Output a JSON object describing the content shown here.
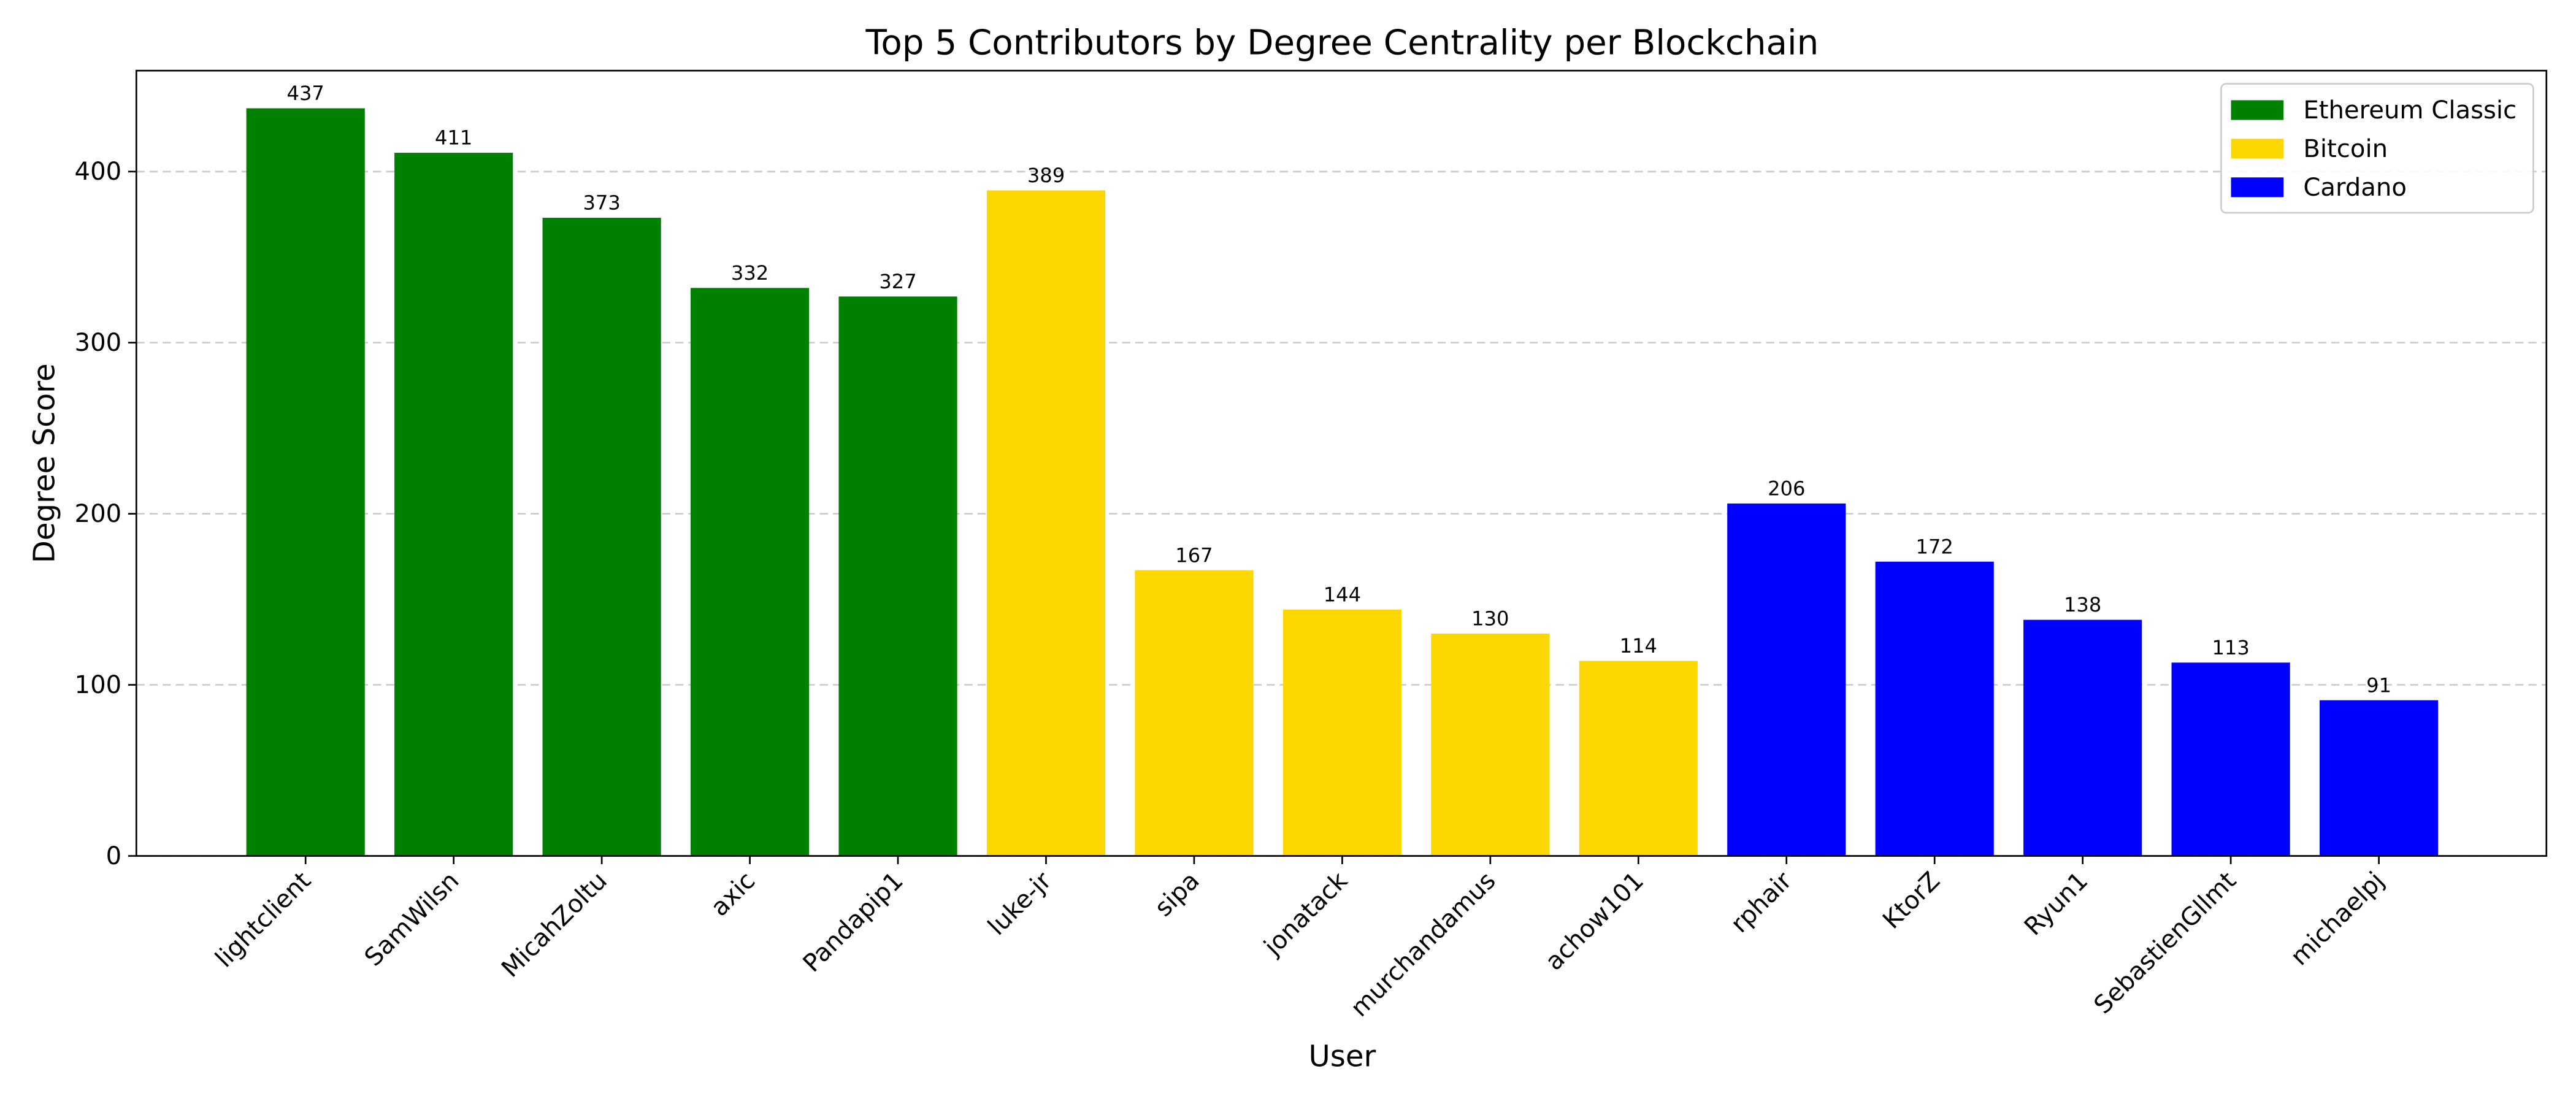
{
  "chart_data": {
    "type": "bar",
    "title": "Top 5 Contributors by Degree Centrality per Blockchain",
    "xlabel": "User",
    "ylabel": "Degree Score",
    "categories": [
      "lightclient",
      "SamWilsn",
      "MicahZoltu",
      "axic",
      "Pandapip1",
      "luke-jr",
      "sipa",
      "jonatack",
      "murchandamus",
      "achow101",
      "rphair",
      "KtorZ",
      "Ryun1",
      "SebastienGllmt",
      "michaelpj"
    ],
    "series": [
      {
        "name": "Ethereum Classic",
        "color": "#008000",
        "values": [
          437,
          411,
          373,
          332,
          327,
          null,
          null,
          null,
          null,
          null,
          null,
          null,
          null,
          null,
          null
        ]
      },
      {
        "name": "Bitcoin",
        "color": "#ffd700",
        "values": [
          null,
          null,
          null,
          null,
          null,
          389,
          167,
          144,
          130,
          114,
          null,
          null,
          null,
          null,
          null
        ]
      },
      {
        "name": "Cardano",
        "color": "#0000ff",
        "values": [
          null,
          null,
          null,
          null,
          null,
          null,
          null,
          null,
          null,
          null,
          206,
          172,
          138,
          113,
          91
        ]
      }
    ],
    "ylim": [
      0,
      459
    ],
    "yticks": [
      0,
      100,
      200,
      300,
      400
    ],
    "grid": true,
    "legend": "upper right"
  }
}
